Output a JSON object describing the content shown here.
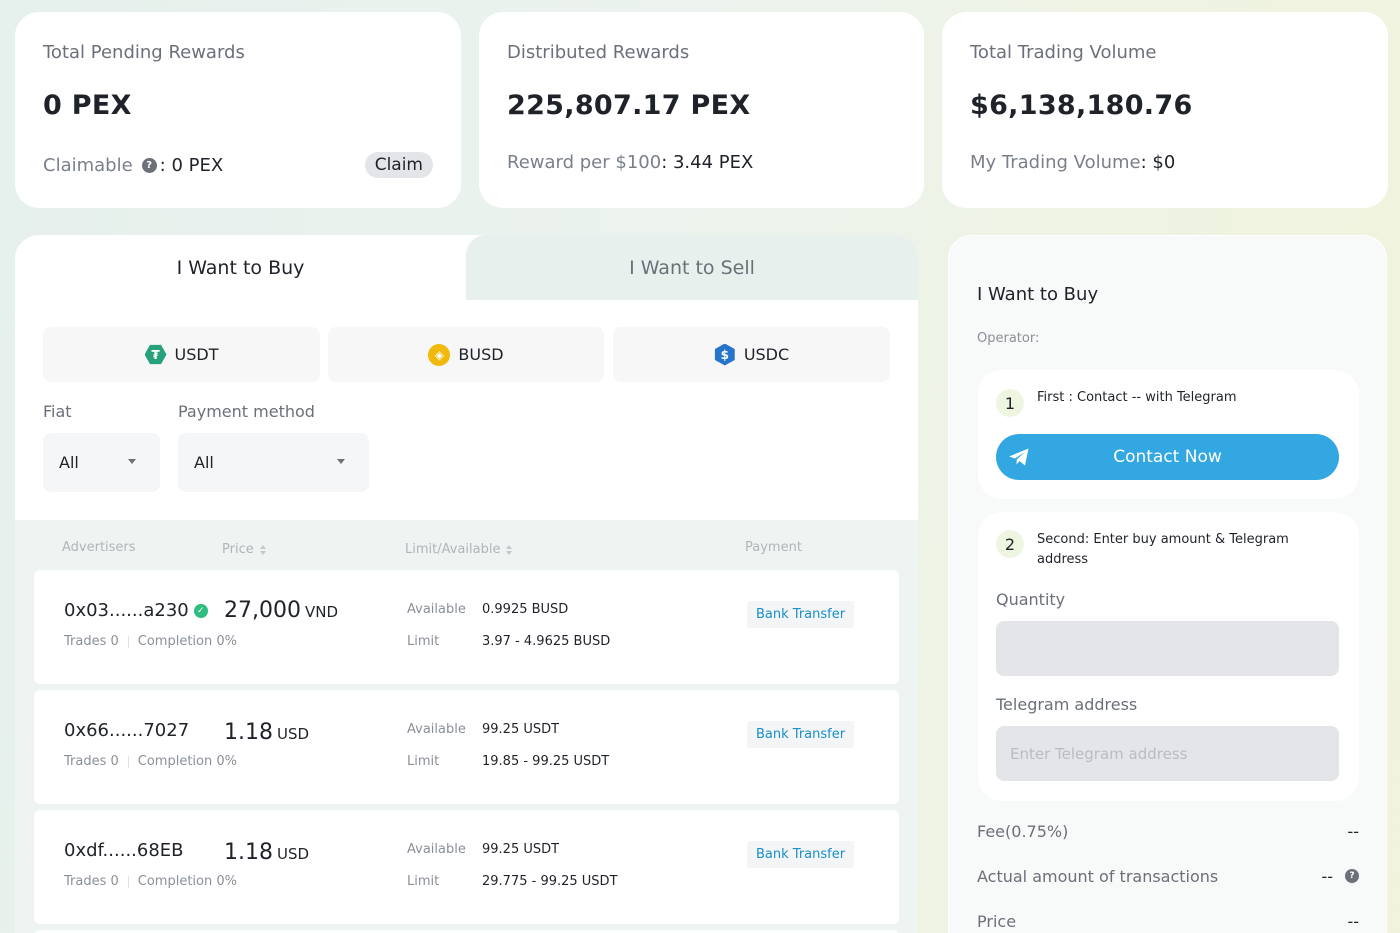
{
  "stats": {
    "pending": {
      "label": "Total Pending Rewards",
      "value": "0 PEX",
      "claimable_label": "Claimable",
      "claimable_value": ": 0 PEX",
      "claim_button": "Claim"
    },
    "distributed": {
      "label": "Distributed Rewards",
      "value": "225,807.17 PEX",
      "reward_label": "Reward per $100",
      "reward_value": ": 3.44 PEX"
    },
    "volume": {
      "label": "Total Trading Volume",
      "value": "$6,138,180.76",
      "my_label": "My Trading Volume",
      "my_value": ": $0"
    }
  },
  "tabs": {
    "buy": "I Want to Buy",
    "sell": "I Want to Sell"
  },
  "coins": [
    {
      "label": "USDT",
      "icon": "tether-icon",
      "color": "#26a17b"
    },
    {
      "label": "BUSD",
      "icon": "busd-icon",
      "color": "#f0b90b"
    },
    {
      "label": "USDC",
      "icon": "usdc-icon",
      "color": "#2775ca"
    }
  ],
  "filters": {
    "fiat_label": "Fiat",
    "fiat_value": "All",
    "payment_label": "Payment method",
    "payment_value": "All"
  },
  "table": {
    "headers": {
      "advertisers": "Advertisers",
      "price": "Price",
      "limit": "Limit/Available",
      "payment": "Payment"
    },
    "available_key": "Available",
    "limit_key": "Limit",
    "rows": [
      {
        "advertiser": "0x03......a230",
        "verified": true,
        "trades": "Trades 0",
        "completion": "Completion 0%",
        "price": "27,000",
        "currency": "VND",
        "available": "0.9925 BUSD",
        "limit": "3.97 - 4.9625 BUSD",
        "payment": "Bank Transfer"
      },
      {
        "advertiser": "0x66......7027",
        "verified": false,
        "trades": "Trades 0",
        "completion": "Completion 0%",
        "price": "1.18",
        "currency": "USD",
        "available": "99.25 USDT",
        "limit": "19.85 - 99.25 USDT",
        "payment": "Bank Transfer"
      },
      {
        "advertiser": "0xdf......68EB",
        "verified": false,
        "trades": "Trades 0",
        "completion": "Completion 0%",
        "price": "1.18",
        "currency": "USD",
        "available": "99.25 USDT",
        "limit": "29.775 - 99.25 USDT",
        "payment": "Bank Transfer"
      }
    ]
  },
  "order": {
    "title": "I Want to Buy",
    "operator": "Operator:",
    "step1": {
      "num": "1",
      "text": "First : Contact -- with Telegram",
      "button": "Contact Now"
    },
    "step2": {
      "num": "2",
      "text": "Second: Enter buy amount & Telegram address",
      "quantity_label": "Quantity",
      "quantity_value": "",
      "telegram_label": "Telegram address",
      "telegram_placeholder": "Enter Telegram address"
    },
    "fee_label": "Fee(0.75%)",
    "fee_value": "--",
    "actual_label": "Actual amount of transactions",
    "actual_value": "--",
    "price_label": "Price",
    "price_value": "--"
  },
  "colors": {
    "accent": "#32a7e2",
    "verified": "#2dbd7e",
    "link": "#1a8fc9"
  }
}
